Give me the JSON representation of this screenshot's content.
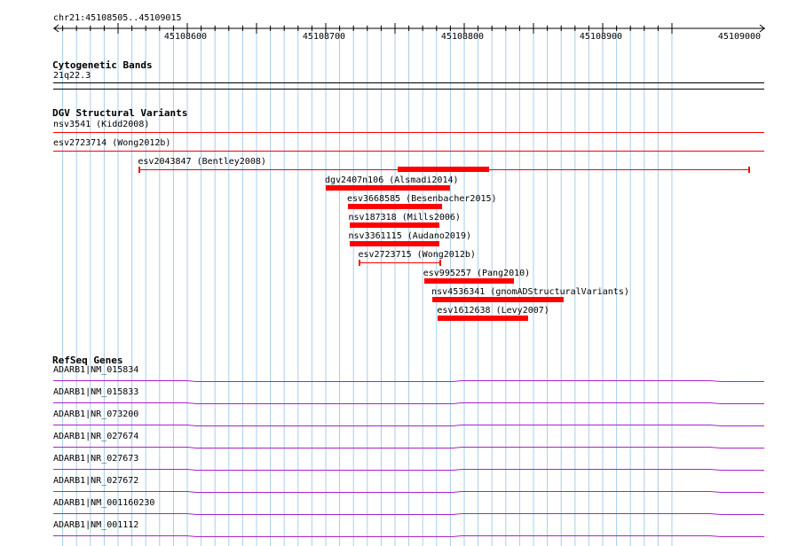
{
  "location": "chr21:45108505..45109015",
  "ruler": {
    "ticks": [
      {
        "label": "45108600",
        "pos": 45108600
      },
      {
        "label": "45108700",
        "pos": 45108700
      },
      {
        "label": "45108800",
        "pos": 45108800
      },
      {
        "label": "45108900",
        "pos": 45108900
      },
      {
        "label": "45109000",
        "pos": 45109000
      }
    ]
  },
  "tracks": {
    "cytobands": {
      "title": "Cytogenetic Bands",
      "band": "21q22.3"
    },
    "dgv": {
      "title": "DGV Structural Variants",
      "full_width": [
        {
          "label": "nsv3541 (Kidd2008)"
        },
        {
          "label": "esv2723714 (Wong2012b)"
        }
      ],
      "features": [
        {
          "label": "esv2043847 (Bentley2008)",
          "start": 45108565,
          "end": 45109005,
          "thick_start": 45108752,
          "thick_end": 45108818,
          "style": "thin"
        },
        {
          "label": "dgv2407n106 (Alsmadi2014)",
          "start": 45108700,
          "end": 45108790,
          "style": "thick"
        },
        {
          "label": "esv3668585 (Besenbacher2015)",
          "start": 45108716,
          "end": 45108784,
          "style": "thick"
        },
        {
          "label": "nsv187318 (Mills2006)",
          "start": 45108717,
          "end": 45108782,
          "style": "thick"
        },
        {
          "label": "nsv3361115 (Audano2019)",
          "start": 45108717,
          "end": 45108782,
          "style": "thick"
        },
        {
          "label": "esv2723715 (Wong2012b)",
          "start": 45108724,
          "end": 45108782,
          "style": "thin"
        },
        {
          "label": "esv995257 (Pang2010)",
          "start": 45108771,
          "end": 45108836,
          "style": "thick"
        },
        {
          "label": "nsv4536341 (gnomADStructuralVariants)",
          "start": 45108777,
          "end": 45108872,
          "style": "thick"
        },
        {
          "label": "esv1612638 (Levy2007)",
          "start": 45108781,
          "end": 45108846,
          "style": "thick"
        }
      ]
    },
    "refseq": {
      "title": "RefSeq Genes",
      "genes": [
        {
          "label": "ADARB1|NM_015834"
        },
        {
          "label": "ADARB1|NM_015833"
        },
        {
          "label": "ADARB1|NR_073200"
        },
        {
          "label": "ADARB1|NR_027674"
        },
        {
          "label": "ADARB1|NR_027673"
        },
        {
          "label": "ADARB1|NR_027672"
        },
        {
          "label": "ADARB1|NM_001160230"
        },
        {
          "label": "ADARB1|NM_001112"
        }
      ]
    }
  },
  "colors": {
    "grid": "#a9cde8",
    "variant": "#ff0000",
    "gene": "#aa22cc"
  }
}
